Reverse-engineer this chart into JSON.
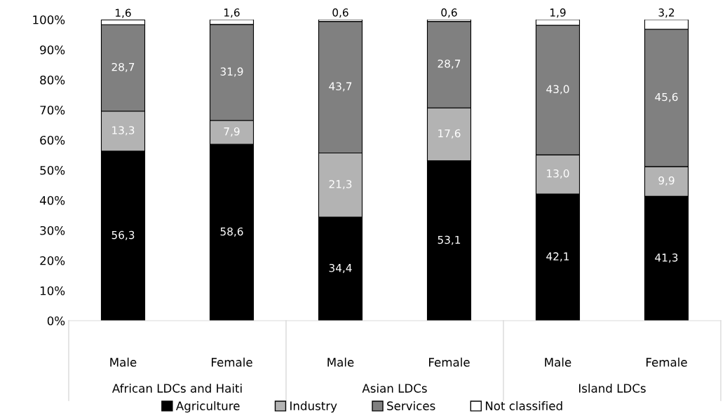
{
  "chart_data": {
    "type": "bar",
    "stacked": true,
    "categories": [
      "Male",
      "Female",
      "Male",
      "Female",
      "Male",
      "Female"
    ],
    "series": [
      {
        "name": "Agriculture",
        "color": "#000000",
        "values": [
          56.3,
          58.6,
          34.4,
          53.1,
          42.1,
          41.3
        ],
        "value_labels": [
          "56,3",
          "58,6",
          "34,4",
          "53,1",
          "42,1",
          "41,3"
        ]
      },
      {
        "name": "Industry",
        "color": "#b3b3b3",
        "values": [
          13.3,
          7.9,
          21.3,
          17.6,
          13.0,
          9.9
        ],
        "value_labels": [
          "13,3",
          "7,9",
          "21,3",
          "17,6",
          "13,0",
          "9,9"
        ]
      },
      {
        "name": "Services",
        "color": "#808080",
        "values": [
          28.7,
          31.9,
          43.7,
          28.7,
          43.0,
          45.6
        ],
        "value_labels": [
          "28,7",
          "31,9",
          "43,7",
          "28,7",
          "43,0",
          "45,6"
        ]
      },
      {
        "name": "Not classified",
        "color": "#ffffff",
        "values": [
          1.6,
          1.6,
          0.6,
          0.6,
          1.9,
          3.2
        ],
        "value_labels": [
          "1,6",
          "1,6",
          "0,6",
          "0,6",
          "1,9",
          "3,2"
        ]
      }
    ],
    "annotations": [
      "African LDCs and Haiti",
      "Asian LDCs",
      "Island LDCs"
    ],
    "ylim": [
      0,
      100
    ],
    "yticks": [
      {
        "value": 0,
        "label": "0%"
      },
      {
        "value": 10,
        "label": "10%"
      },
      {
        "value": 20,
        "label": "20%"
      },
      {
        "value": 30,
        "label": "30%"
      },
      {
        "value": 40,
        "label": "40%"
      },
      {
        "value": 50,
        "label": "50%"
      },
      {
        "value": 60,
        "label": "60%"
      },
      {
        "value": 70,
        "label": "70%"
      },
      {
        "value": 80,
        "label": "80%"
      },
      {
        "value": 90,
        "label": "90%"
      },
      {
        "value": 100,
        "label": "100%"
      }
    ],
    "grid": false,
    "legend": "bottom"
  }
}
